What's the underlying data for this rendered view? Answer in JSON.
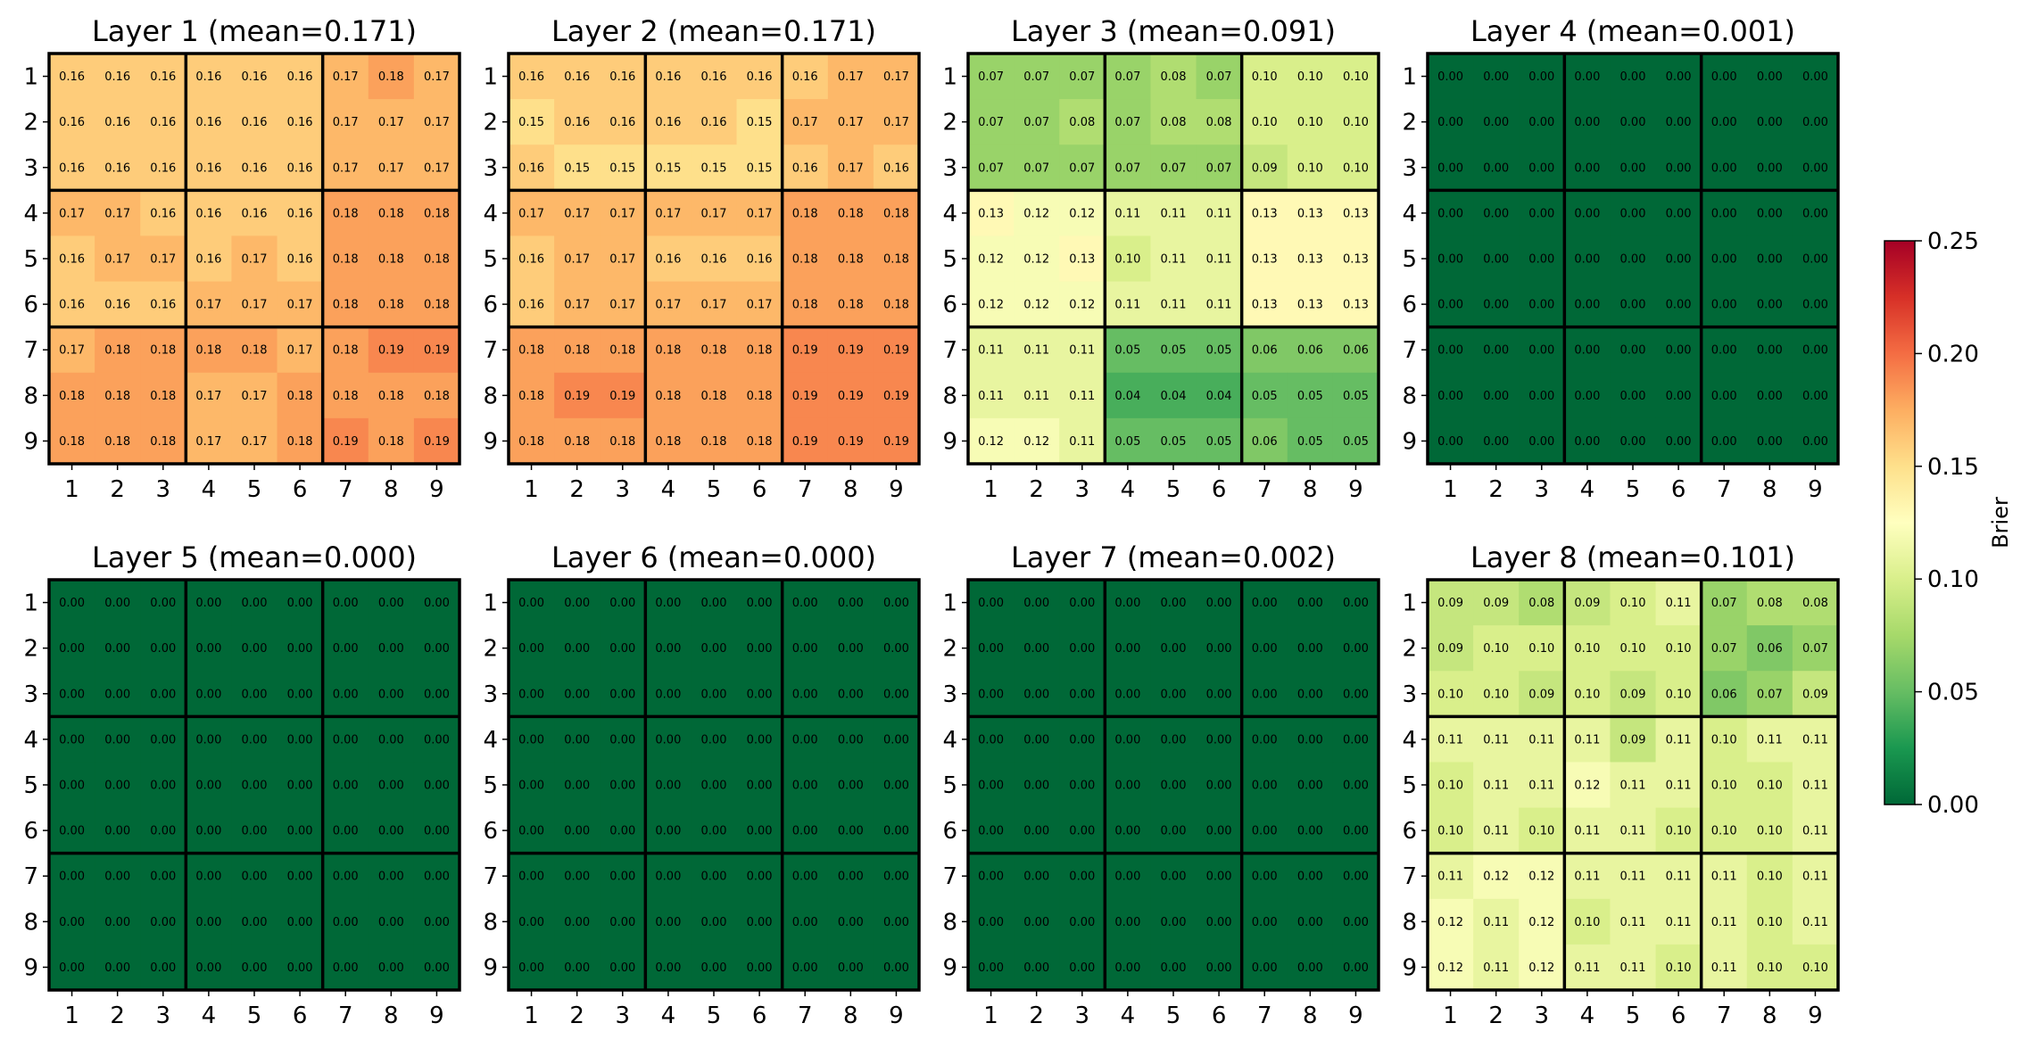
{
  "chart_data": {
    "type": "heatmap",
    "grid_rows": 2,
    "grid_cols": 4,
    "panels": [
      {
        "title": "Layer 1 (mean=0.171)",
        "xticks": [
          "1",
          "2",
          "3",
          "4",
          "5",
          "6",
          "7",
          "8",
          "9"
        ],
        "yticks": [
          "1",
          "2",
          "3",
          "4",
          "5",
          "6",
          "7",
          "8",
          "9"
        ],
        "values": [
          [
            0.16,
            0.16,
            0.16,
            0.16,
            0.16,
            0.16,
            0.17,
            0.18,
            0.17
          ],
          [
            0.16,
            0.16,
            0.16,
            0.16,
            0.16,
            0.16,
            0.17,
            0.17,
            0.17
          ],
          [
            0.16,
            0.16,
            0.16,
            0.16,
            0.16,
            0.16,
            0.17,
            0.17,
            0.17
          ],
          [
            0.17,
            0.17,
            0.16,
            0.16,
            0.16,
            0.16,
            0.18,
            0.18,
            0.18
          ],
          [
            0.16,
            0.17,
            0.17,
            0.16,
            0.17,
            0.16,
            0.18,
            0.18,
            0.18
          ],
          [
            0.16,
            0.16,
            0.16,
            0.17,
            0.17,
            0.17,
            0.18,
            0.18,
            0.18
          ],
          [
            0.17,
            0.18,
            0.18,
            0.18,
            0.18,
            0.17,
            0.18,
            0.19,
            0.19
          ],
          [
            0.18,
            0.18,
            0.18,
            0.17,
            0.17,
            0.18,
            0.18,
            0.18,
            0.18
          ],
          [
            0.18,
            0.18,
            0.18,
            0.17,
            0.17,
            0.18,
            0.19,
            0.18,
            0.19
          ]
        ]
      },
      {
        "title": "Layer 2 (mean=0.171)",
        "xticks": [
          "1",
          "2",
          "3",
          "4",
          "5",
          "6",
          "7",
          "8",
          "9"
        ],
        "yticks": [
          "1",
          "2",
          "3",
          "4",
          "5",
          "6",
          "7",
          "8",
          "9"
        ],
        "values": [
          [
            0.16,
            0.16,
            0.16,
            0.16,
            0.16,
            0.16,
            0.16,
            0.17,
            0.17
          ],
          [
            0.15,
            0.16,
            0.16,
            0.16,
            0.16,
            0.15,
            0.17,
            0.17,
            0.17
          ],
          [
            0.16,
            0.15,
            0.15,
            0.15,
            0.15,
            0.15,
            0.16,
            0.17,
            0.16
          ],
          [
            0.17,
            0.17,
            0.17,
            0.17,
            0.17,
            0.17,
            0.18,
            0.18,
            0.18
          ],
          [
            0.16,
            0.17,
            0.17,
            0.16,
            0.16,
            0.16,
            0.18,
            0.18,
            0.18
          ],
          [
            0.16,
            0.17,
            0.17,
            0.17,
            0.17,
            0.17,
            0.18,
            0.18,
            0.18
          ],
          [
            0.18,
            0.18,
            0.18,
            0.18,
            0.18,
            0.18,
            0.19,
            0.19,
            0.19
          ],
          [
            0.18,
            0.19,
            0.19,
            0.18,
            0.18,
            0.18,
            0.19,
            0.19,
            0.19
          ],
          [
            0.18,
            0.18,
            0.18,
            0.18,
            0.18,
            0.18,
            0.19,
            0.19,
            0.19
          ]
        ]
      },
      {
        "title": "Layer 3 (mean=0.091)",
        "xticks": [
          "1",
          "2",
          "3",
          "4",
          "5",
          "6",
          "7",
          "8",
          "9"
        ],
        "yticks": [
          "1",
          "2",
          "3",
          "4",
          "5",
          "6",
          "7",
          "8",
          "9"
        ],
        "values": [
          [
            0.07,
            0.07,
            0.07,
            0.07,
            0.08,
            0.07,
            0.1,
            0.1,
            0.1
          ],
          [
            0.07,
            0.07,
            0.08,
            0.07,
            0.08,
            0.08,
            0.1,
            0.1,
            0.1
          ],
          [
            0.07,
            0.07,
            0.07,
            0.07,
            0.07,
            0.07,
            0.09,
            0.1,
            0.1
          ],
          [
            0.13,
            0.12,
            0.12,
            0.11,
            0.11,
            0.11,
            0.13,
            0.13,
            0.13
          ],
          [
            0.12,
            0.12,
            0.13,
            0.1,
            0.11,
            0.11,
            0.13,
            0.13,
            0.13
          ],
          [
            0.12,
            0.12,
            0.12,
            0.11,
            0.11,
            0.11,
            0.13,
            0.13,
            0.13
          ],
          [
            0.11,
            0.11,
            0.11,
            0.05,
            0.05,
            0.05,
            0.06,
            0.06,
            0.06
          ],
          [
            0.11,
            0.11,
            0.11,
            0.04,
            0.04,
            0.04,
            0.05,
            0.05,
            0.05
          ],
          [
            0.12,
            0.12,
            0.11,
            0.05,
            0.05,
            0.05,
            0.06,
            0.05,
            0.05
          ]
        ]
      },
      {
        "title": "Layer 4 (mean=0.001)",
        "xticks": [
          "1",
          "2",
          "3",
          "4",
          "5",
          "6",
          "7",
          "8",
          "9"
        ],
        "yticks": [
          "1",
          "2",
          "3",
          "4",
          "5",
          "6",
          "7",
          "8",
          "9"
        ],
        "values": [
          [
            0,
            0,
            0,
            0,
            0,
            0,
            0,
            0,
            0
          ],
          [
            0,
            0,
            0,
            0,
            0,
            0,
            0,
            0,
            0
          ],
          [
            0,
            0,
            0,
            0,
            0,
            0,
            0,
            0,
            0
          ],
          [
            0,
            0,
            0,
            0,
            0,
            0,
            0,
            0,
            0
          ],
          [
            0,
            0,
            0,
            0,
            0,
            0,
            0,
            0,
            0
          ],
          [
            0,
            0,
            0,
            0,
            0,
            0,
            0,
            0,
            0
          ],
          [
            0,
            0,
            0,
            0,
            0,
            0,
            0,
            0,
            0
          ],
          [
            0,
            0,
            0,
            0,
            0,
            0,
            0,
            0,
            0
          ],
          [
            0,
            0,
            0,
            0,
            0,
            0,
            0,
            0,
            0
          ]
        ]
      },
      {
        "title": "Layer 5 (mean=0.000)",
        "xticks": [
          "1",
          "2",
          "3",
          "4",
          "5",
          "6",
          "7",
          "8",
          "9"
        ],
        "yticks": [
          "1",
          "2",
          "3",
          "4",
          "5",
          "6",
          "7",
          "8",
          "9"
        ],
        "values": [
          [
            0,
            0,
            0,
            0,
            0,
            0,
            0,
            0,
            0
          ],
          [
            0,
            0,
            0,
            0,
            0,
            0,
            0,
            0,
            0
          ],
          [
            0,
            0,
            0,
            0,
            0,
            0,
            0,
            0,
            0
          ],
          [
            0,
            0,
            0,
            0,
            0,
            0,
            0,
            0,
            0
          ],
          [
            0,
            0,
            0,
            0,
            0,
            0,
            0,
            0,
            0
          ],
          [
            0,
            0,
            0,
            0,
            0,
            0,
            0,
            0,
            0
          ],
          [
            0,
            0,
            0,
            0,
            0,
            0,
            0,
            0,
            0
          ],
          [
            0,
            0,
            0,
            0,
            0,
            0,
            0,
            0,
            0
          ],
          [
            0,
            0,
            0,
            0,
            0,
            0,
            0,
            0,
            0
          ]
        ]
      },
      {
        "title": "Layer 6 (mean=0.000)",
        "xticks": [
          "1",
          "2",
          "3",
          "4",
          "5",
          "6",
          "7",
          "8",
          "9"
        ],
        "yticks": [
          "1",
          "2",
          "3",
          "4",
          "5",
          "6",
          "7",
          "8",
          "9"
        ],
        "values": [
          [
            0,
            0,
            0,
            0,
            0,
            0,
            0,
            0,
            0
          ],
          [
            0,
            0,
            0,
            0,
            0,
            0,
            0,
            0,
            0
          ],
          [
            0,
            0,
            0,
            0,
            0,
            0,
            0,
            0,
            0
          ],
          [
            0,
            0,
            0,
            0,
            0,
            0,
            0,
            0,
            0
          ],
          [
            0,
            0,
            0,
            0,
            0,
            0,
            0,
            0,
            0
          ],
          [
            0,
            0,
            0,
            0,
            0,
            0,
            0,
            0,
            0
          ],
          [
            0,
            0,
            0,
            0,
            0,
            0,
            0,
            0,
            0
          ],
          [
            0,
            0,
            0,
            0,
            0,
            0,
            0,
            0,
            0
          ],
          [
            0,
            0,
            0,
            0,
            0,
            0,
            0,
            0,
            0
          ]
        ]
      },
      {
        "title": "Layer 7 (mean=0.002)",
        "xticks": [
          "1",
          "2",
          "3",
          "4",
          "5",
          "6",
          "7",
          "8",
          "9"
        ],
        "yticks": [
          "1",
          "2",
          "3",
          "4",
          "5",
          "6",
          "7",
          "8",
          "9"
        ],
        "values": [
          [
            0,
            0,
            0,
            0,
            0,
            0,
            0,
            0,
            0
          ],
          [
            0,
            0,
            0,
            0,
            0,
            0,
            0,
            0,
            0
          ],
          [
            0,
            0,
            0,
            0,
            0,
            0,
            0,
            0,
            0
          ],
          [
            0,
            0,
            0,
            0,
            0,
            0,
            0,
            0,
            0
          ],
          [
            0,
            0,
            0,
            0,
            0,
            0,
            0,
            0,
            0
          ],
          [
            0,
            0,
            0,
            0,
            0,
            0,
            0,
            0,
            0
          ],
          [
            0,
            0,
            0,
            0,
            0,
            0,
            0,
            0,
            0
          ],
          [
            0,
            0,
            0,
            0,
            0,
            0,
            0,
            0,
            0
          ],
          [
            0,
            0,
            0,
            0,
            0,
            0,
            0,
            0,
            0
          ]
        ]
      },
      {
        "title": "Layer 8 (mean=0.101)",
        "xticks": [
          "1",
          "2",
          "3",
          "4",
          "5",
          "6",
          "7",
          "8",
          "9"
        ],
        "yticks": [
          "1",
          "2",
          "3",
          "4",
          "5",
          "6",
          "7",
          "8",
          "9"
        ],
        "values": [
          [
            0.09,
            0.09,
            0.08,
            0.09,
            0.1,
            0.11,
            0.07,
            0.08,
            0.08
          ],
          [
            0.09,
            0.1,
            0.1,
            0.1,
            0.1,
            0.1,
            0.07,
            0.06,
            0.07
          ],
          [
            0.1,
            0.1,
            0.09,
            0.1,
            0.09,
            0.1,
            0.06,
            0.07,
            0.09
          ],
          [
            0.11,
            0.11,
            0.11,
            0.11,
            0.09,
            0.11,
            0.1,
            0.11,
            0.11
          ],
          [
            0.1,
            0.11,
            0.11,
            0.12,
            0.11,
            0.11,
            0.1,
            0.1,
            0.11
          ],
          [
            0.1,
            0.11,
            0.1,
            0.11,
            0.11,
            0.1,
            0.1,
            0.1,
            0.11
          ],
          [
            0.11,
            0.12,
            0.12,
            0.11,
            0.11,
            0.11,
            0.11,
            0.1,
            0.11
          ],
          [
            0.12,
            0.11,
            0.12,
            0.1,
            0.11,
            0.11,
            0.11,
            0.1,
            0.11
          ],
          [
            0.12,
            0.11,
            0.12,
            0.11,
            0.11,
            0.1,
            0.11,
            0.1,
            0.1
          ]
        ]
      }
    ],
    "colorbar": {
      "label": "Brier",
      "vmin": 0.0,
      "vmax": 0.25,
      "ticks": [
        "0.00",
        "0.05",
        "0.10",
        "0.15",
        "0.20",
        "0.25"
      ],
      "colormap": "RdYlGn_r"
    },
    "block_size": 3,
    "value_format": "2 decimals"
  }
}
